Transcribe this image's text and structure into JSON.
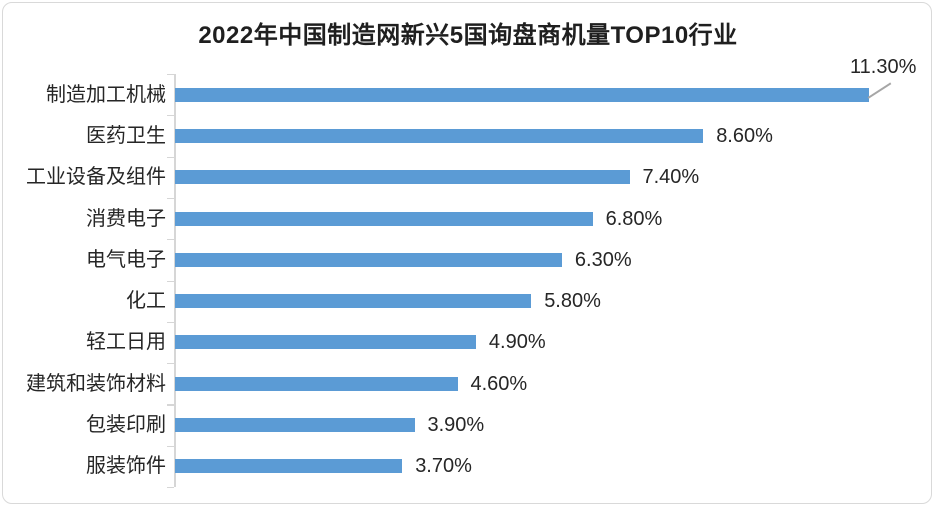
{
  "window": {
    "background": "#FFFFFF",
    "frame_border_color": "#D9D9D9"
  },
  "chart_data": {
    "type": "bar",
    "orientation": "horizontal",
    "title": "2022年中国制造网新兴5国询盘商机量TOP10行业",
    "categories": [
      "制造加工机械",
      "医药卫生",
      "工业设备及组件",
      "消费电子",
      "电气电子",
      "化工",
      "轻工日用",
      "建筑和装饰材料",
      "包装印刷",
      "服装饰件"
    ],
    "values": [
      11.3,
      8.6,
      7.4,
      6.8,
      6.3,
      5.8,
      4.9,
      4.6,
      3.9,
      3.7
    ],
    "value_labels": [
      "11.30%",
      "8.60%",
      "7.40%",
      "6.80%",
      "6.30%",
      "5.80%",
      "4.90%",
      "4.60%",
      "3.90%",
      "3.70%"
    ],
    "xlim": [
      0,
      12.4
    ],
    "grid": false,
    "legend": "none",
    "sorted": "descending",
    "first_label_callout": true,
    "bar_color": "#5B9BD5",
    "axis_color": "#D6D6D6",
    "leader_line_color": "#A6A6A6",
    "text_color": "#262626",
    "title_color": "#1F1F1F"
  }
}
